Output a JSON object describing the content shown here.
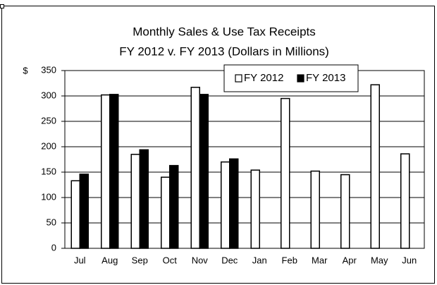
{
  "chart_data": {
    "type": "bar",
    "title": "Monthly Sales & Use Tax Receipts",
    "subtitle": "FY 2012  v. FY 2013 (Dollars in Millions)",
    "y_unit": "$",
    "categories": [
      "Jul",
      "Aug",
      "Sep",
      "Oct",
      "Nov",
      "Dec",
      "Jan",
      "Feb",
      "Mar",
      "Apr",
      "May",
      "Jun"
    ],
    "series": [
      {
        "name": "FY 2012",
        "color": "#ffffff",
        "values": [
          133,
          302,
          185,
          140,
          317,
          170,
          154,
          295,
          152,
          145,
          322,
          186
        ]
      },
      {
        "name": "FY 2013",
        "color": "#000000",
        "values": [
          146,
          303,
          194,
          163,
          303,
          176,
          null,
          null,
          null,
          null,
          null,
          null
        ]
      }
    ],
    "ylim": [
      0,
      350
    ],
    "yticks": [
      0,
      50,
      100,
      150,
      200,
      250,
      300,
      350
    ],
    "grid": true,
    "legend": "top-right"
  }
}
